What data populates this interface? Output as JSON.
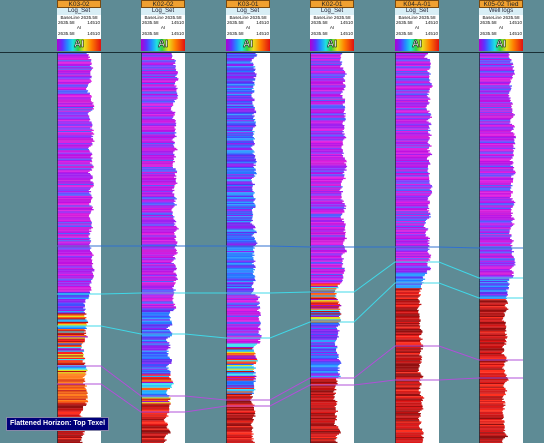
{
  "flattened_label": "Flattened Horizon: Top Texel",
  "wells": [
    {
      "name": "K03-02",
      "set": "Log_Set",
      "baseline": "BaseLine 2635.58",
      "v1": "2635.58",
      "v2": "14510",
      "prop": "AI",
      "v3": "2635.58",
      "v4": "14510",
      "bar_label": "AI"
    },
    {
      "name": "K02-02",
      "set": "Log_Set",
      "baseline": "BaseLine 2635.58",
      "v1": "2635.58",
      "v2": "14510",
      "prop": "AI",
      "v3": "2635.58",
      "v4": "14510",
      "bar_label": "AI"
    },
    {
      "name": "K03-01",
      "set": "Log_Set",
      "baseline": "BaseLine 2635.58",
      "v1": "2635.58",
      "v2": "14510",
      "prop": "AI",
      "v3": "2635.58",
      "v4": "14510",
      "bar_label": "AI"
    },
    {
      "name": "K02-01",
      "set": "Log_Set",
      "baseline": "BaseLine 2635.58",
      "v1": "2635.58",
      "v2": "14510",
      "prop": "AI",
      "v3": "2635.58",
      "v4": "14510",
      "bar_label": "AI"
    },
    {
      "name": "K04-A-01",
      "set": "Log_Set",
      "baseline": "BaseLine 2635.58",
      "v1": "2635.58",
      "v2": "14510",
      "prop": "AI",
      "v3": "2635.58",
      "v4": "14510",
      "bar_label": "AI"
    },
    {
      "name": "K05-02 Tied",
      "set": "Well logs",
      "baseline": "BaseLine 2635.58",
      "v1": "2635.58",
      "v2": "14510",
      "prop": "AI",
      "v3": "2635.58",
      "v4": "14510",
      "bar_label": "AI"
    }
  ],
  "colors": {
    "background": "#5e8b95",
    "header": "#f0a030",
    "horizon_blue": "#3070d0",
    "horizon_cyan": "#40d8e8",
    "horizon_magenta": "#c040e0"
  }
}
